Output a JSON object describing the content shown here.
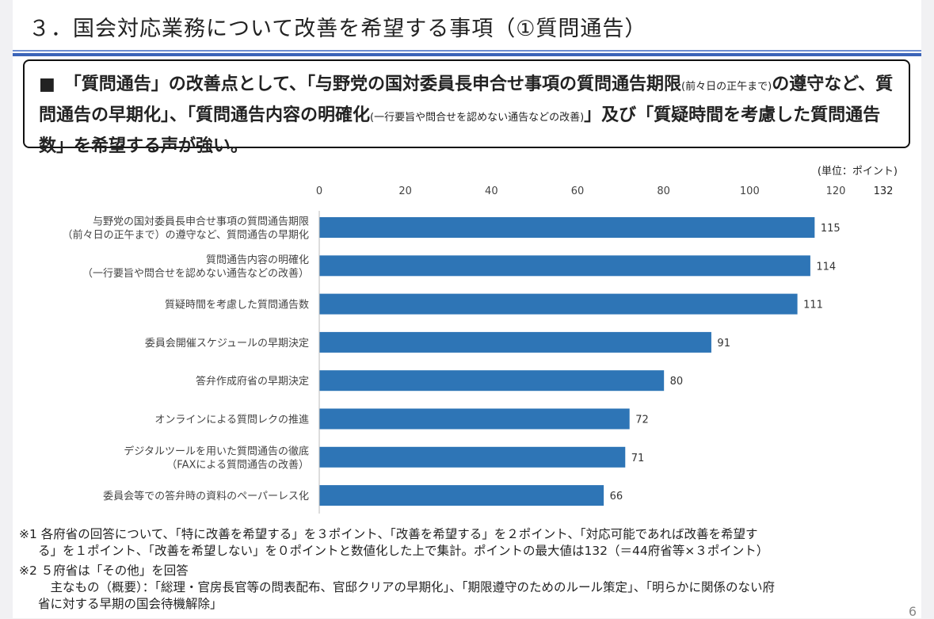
{
  "title": "３．国会対応業務について改善を希望する事項（①質問通告）",
  "summary": {
    "bullet": "■",
    "parts": [
      {
        "text": "　「質問通告」の改善点として、「与野党の国対委員長申合せ事項の質問通告期限",
        "small": false
      },
      {
        "text": "(前々日の正午まで)",
        "small": true
      },
      {
        "text": "の遵守など、質問通告の早期化」、「質問通告内容の明確化",
        "small": false
      },
      {
        "text": "(一行要旨や問合せを認めない通告などの改善)",
        "small": true
      },
      {
        "text": "」及び「質疑時間を考慮した質問通告数」を希望する声が強い。",
        "small": false
      }
    ]
  },
  "chart_data": {
    "type": "bar",
    "orientation": "horizontal",
    "unit_label": "(単位：ポイント)",
    "xlim": [
      0,
      132
    ],
    "ticks": [
      "0",
      "20",
      "40",
      "60",
      "80",
      "100",
      "120"
    ],
    "max_label": "132",
    "grid": false,
    "bar_color": "#2e75b6",
    "categories": [
      [
        "与野党の国対委員長申合せ事項の質問通告期限",
        "（前々日の正午まで）の遵守など、質問通告の早期化"
      ],
      [
        "質問通告内容の明確化",
        "（一行要旨や問合せを認めない通告などの改善）"
      ],
      [
        "質疑時間を考慮した質問通告数"
      ],
      [
        "委員会開催スケジュールの早期決定"
      ],
      [
        "答弁作成府省の早期決定"
      ],
      [
        "オンラインによる質問レクの推進"
      ],
      [
        "デジタルツールを用いた質問通告の徹底",
        "（FAXによる質問通告の改善）"
      ],
      [
        "委員会等での答弁時の資料のペーパーレス化"
      ]
    ],
    "values": [
      115,
      114,
      111,
      91,
      80,
      72,
      71,
      66
    ]
  },
  "notes": [
    "※1 各府省の回答について、「特に改善を希望する」を３ポイント、「改善を希望する」を２ポイント、「対応可能であれば改善を希望す",
    "る」を１ポイント、「改善を希望しない」を０ポイントと数値化した上で集計。ポイントの最大値は132（＝44府省等×３ポイント）",
    "※2 ５府省は「その他」を回答",
    "　主なもの（概要）：「総理・官房長官等の問表配布、官邸クリアの早期化」、「期限遵守のためのルール策定」、「明らかに関係のない府",
    "省に対する早期の国会待機解除」"
  ],
  "page_number": "6"
}
